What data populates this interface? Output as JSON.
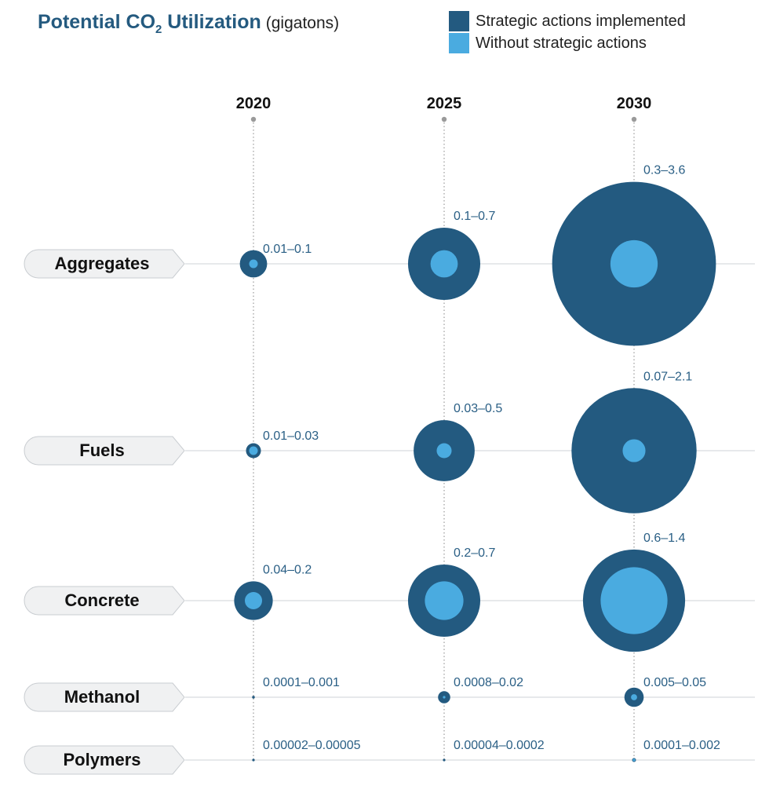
{
  "title": {
    "main": "Potential CO",
    "subscript": "2",
    "rest": " Utilization",
    "unit": "(gigatons)"
  },
  "legend": [
    {
      "label": "Strategic actions implemented",
      "color": "#235a80"
    },
    {
      "label": "Without strategic actions",
      "color": "#4aabe0"
    }
  ],
  "chart_data": {
    "type": "bubble",
    "unit": "gigatons",
    "years": [
      "2020",
      "2025",
      "2030"
    ],
    "categories": [
      {
        "name": "Aggregates",
        "labels": [
          "0.01–0.1",
          "0.1–0.7",
          "0.3–3.6"
        ],
        "low": [
          0.01,
          0.1,
          0.3
        ],
        "high": [
          0.1,
          0.7,
          3.6
        ]
      },
      {
        "name": "Fuels",
        "labels": [
          "0.01–0.03",
          "0.03–0.5",
          "0.07–2.1"
        ],
        "low": [
          0.01,
          0.03,
          0.07
        ],
        "high": [
          0.03,
          0.5,
          2.1
        ]
      },
      {
        "name": "Concrete",
        "labels": [
          "0.04–0.2",
          "0.2–0.7",
          "0.6–1.4"
        ],
        "low": [
          0.04,
          0.2,
          0.6
        ],
        "high": [
          0.2,
          0.7,
          1.4
        ]
      },
      {
        "name": "Methanol",
        "labels": [
          "0.0001–0.001",
          "0.0008–0.02",
          "0.005–0.05"
        ],
        "low": [
          0.0001,
          0.0008,
          0.005
        ],
        "high": [
          0.001,
          0.02,
          0.05
        ]
      },
      {
        "name": "Polymers",
        "labels": [
          "0.00002–0.00005",
          "0.00004–0.0002",
          "0.0001–0.002"
        ],
        "low": [
          2e-05,
          4e-05,
          0.0001
        ],
        "high": [
          5e-05,
          0.0002,
          0.002
        ]
      }
    ]
  }
}
